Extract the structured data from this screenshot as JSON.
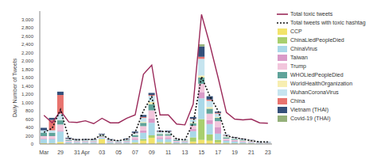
{
  "chart_data": {
    "type": "bar",
    "stacked": true,
    "grid": false,
    "legend": "right",
    "y_label": "Daily Number of Tweets",
    "categories": [
      "Mar",
      null,
      "29",
      null,
      "31",
      "Apr",
      null,
      "03",
      null,
      "05",
      null,
      "07",
      null,
      "09",
      null,
      "11",
      null,
      "13",
      null,
      "15",
      null,
      "17",
      null,
      "19",
      null,
      "21",
      null,
      "23"
    ],
    "ylim": [
      0,
      3200
    ],
    "yticks": [
      0,
      200,
      400,
      600,
      800,
      {
        "value": 1000,
        "label": "1,000"
      },
      {
        "value": 1200,
        "label": "1,200"
      },
      {
        "value": 1400,
        "label": "1,400"
      },
      {
        "value": 1600,
        "label": "1,600"
      },
      {
        "value": 1800,
        "label": "1,800"
      },
      {
        "value": 2000,
        "label": "2,000"
      },
      {
        "value": 2200,
        "label": "2,200"
      },
      {
        "value": 2400,
        "label": "2,400"
      },
      {
        "value": 2600,
        "label": "2,600"
      },
      {
        "value": 2800,
        "label": "2,800"
      },
      {
        "value": 3000,
        "label": "3,000"
      }
    ],
    "series": [
      {
        "name": "Total toxic tweets",
        "type": "line",
        "line_style": "solid",
        "color": "#9b2a5a",
        "values": [
          690,
          510,
          800,
          530,
          520,
          560,
          490,
          620,
          510,
          510,
          620,
          700,
          1680,
          1900,
          700,
          700,
          480,
          460,
          960,
          3120,
          2400,
          1600,
          760,
          600,
          580,
          600,
          510,
          500
        ]
      },
      {
        "name": "Total tweets with toxic hashtag",
        "type": "line",
        "line_style": "dotted",
        "color": "#111111",
        "values": [
          280,
          380,
          830,
          130,
          100,
          110,
          110,
          230,
          100,
          80,
          120,
          280,
          800,
          1140,
          300,
          300,
          120,
          100,
          500,
          1620,
          1150,
          800,
          200,
          150,
          120,
          80,
          50,
          50
        ]
      },
      {
        "name": "CCP",
        "type": "bar",
        "color": "#f2e36b",
        "values": [
          20,
          20,
          50,
          10,
          10,
          10,
          10,
          120,
          10,
          10,
          10,
          30,
          80,
          150,
          30,
          30,
          10,
          10,
          60,
          100,
          80,
          40,
          20,
          10,
          10,
          10,
          5,
          5
        ]
      },
      {
        "name": "ChinaLiedPeopleDied",
        "type": "bar",
        "color": "#a8cf6e",
        "values": [
          0,
          0,
          0,
          0,
          0,
          0,
          0,
          0,
          0,
          0,
          0,
          10,
          40,
          60,
          20,
          20,
          5,
          5,
          100,
          500,
          150,
          60,
          10,
          10,
          5,
          5,
          0,
          0
        ]
      },
      {
        "name": "ChinaVirus",
        "type": "bar",
        "color": "#a9d8e8",
        "values": [
          100,
          100,
          250,
          40,
          30,
          30,
          30,
          30,
          30,
          20,
          30,
          60,
          150,
          300,
          70,
          70,
          30,
          30,
          150,
          500,
          250,
          150,
          50,
          40,
          30,
          20,
          15,
          10
        ]
      },
      {
        "name": "Taiwan",
        "type": "bar",
        "color": "#d99ac8",
        "values": [
          20,
          20,
          20,
          10,
          10,
          10,
          10,
          10,
          10,
          10,
          10,
          30,
          60,
          100,
          30,
          30,
          10,
          10,
          50,
          150,
          100,
          150,
          20,
          15,
          10,
          10,
          5,
          5
        ]
      },
      {
        "name": "Trump",
        "type": "bar",
        "color": "#f2c6dc",
        "values": [
          50,
          50,
          150,
          20,
          20,
          20,
          20,
          20,
          20,
          10,
          20,
          40,
          100,
          200,
          50,
          50,
          20,
          15,
          80,
          200,
          150,
          150,
          30,
          25,
          20,
          15,
          10,
          10
        ]
      },
      {
        "name": "WHOLiedPeopleDied",
        "type": "bar",
        "color": "#5fa39a",
        "values": [
          80,
          80,
          100,
          20,
          15,
          15,
          15,
          20,
          15,
          15,
          20,
          40,
          80,
          150,
          40,
          40,
          20,
          15,
          60,
          150,
          120,
          80,
          30,
          20,
          15,
          10,
          10,
          5
        ]
      },
      {
        "name": "WorldHealthOrganization",
        "type": "bar",
        "color": "#f7eeb0",
        "values": [
          0,
          0,
          10,
          0,
          0,
          0,
          0,
          10,
          0,
          0,
          0,
          10,
          20,
          50,
          10,
          10,
          5,
          5,
          20,
          50,
          40,
          20,
          10,
          5,
          5,
          5,
          0,
          0
        ]
      },
      {
        "name": "WuhanCoronaVirus",
        "type": "bar",
        "color": "#c6e4ef",
        "values": [
          60,
          60,
          150,
          20,
          15,
          15,
          15,
          20,
          15,
          15,
          20,
          40,
          100,
          150,
          40,
          40,
          20,
          15,
          80,
          400,
          150,
          80,
          30,
          25,
          20,
          15,
          10,
          10
        ]
      },
      {
        "name": "China",
        "type": "bar",
        "color": "#e8736e",
        "values": [
          0,
          250,
          450,
          10,
          5,
          5,
          5,
          5,
          5,
          5,
          5,
          10,
          20,
          20,
          10,
          10,
          5,
          0,
          10,
          50,
          30,
          20,
          10,
          10,
          5,
          5,
          0,
          0
        ]
      },
      {
        "name": "Vietnam (THAI)",
        "type": "bar",
        "color": "#34507a",
        "values": [
          60,
          50,
          80,
          20,
          15,
          15,
          15,
          15,
          15,
          5,
          15,
          30,
          50,
          50,
          20,
          20,
          5,
          5,
          40,
          250,
          80,
          30,
          10,
          10,
          10,
          5,
          5,
          5
        ]
      },
      {
        "name": "Covid-19 (THAI)",
        "type": "bar",
        "color": "#94b07a",
        "values": [
          0,
          0,
          0,
          0,
          0,
          0,
          0,
          0,
          0,
          0,
          0,
          0,
          0,
          0,
          0,
          0,
          0,
          0,
          0,
          50,
          0,
          0,
          0,
          0,
          0,
          0,
          0,
          0
        ]
      }
    ]
  }
}
